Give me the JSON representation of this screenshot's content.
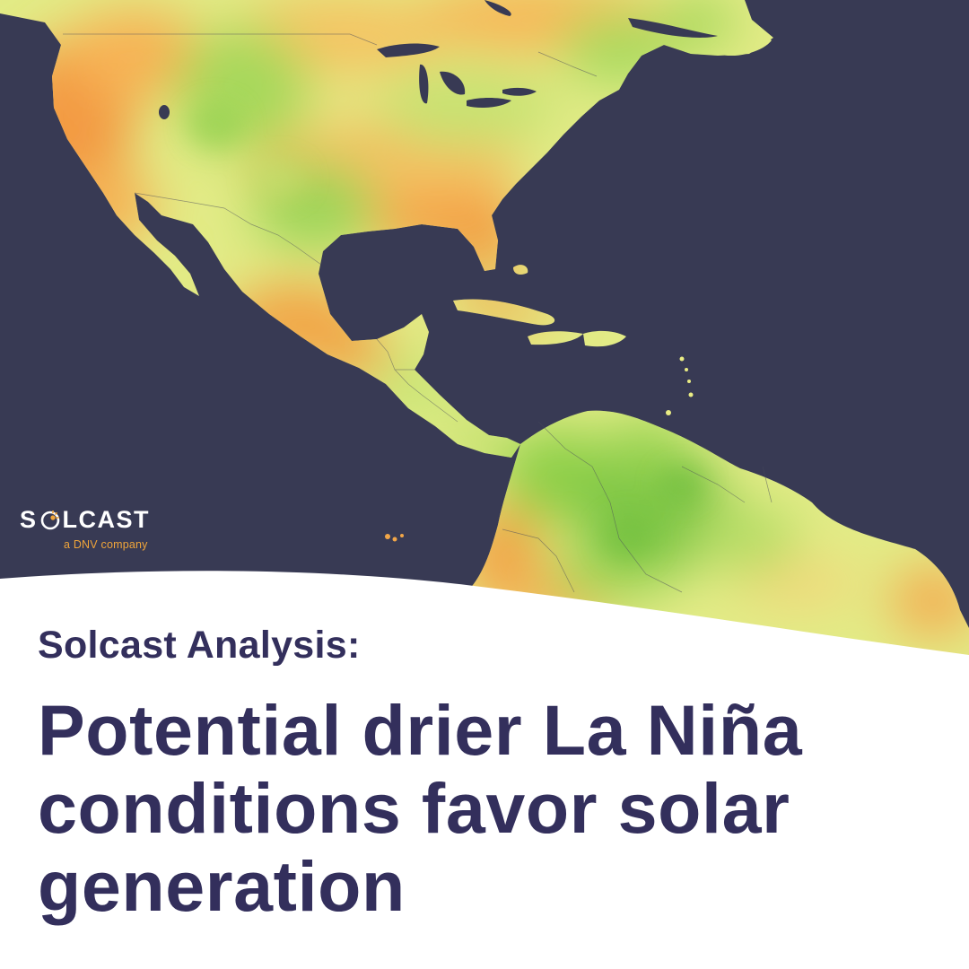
{
  "brand": {
    "wordmark_left": "S",
    "wordmark_right": "LCAST",
    "tagline": "a DNV company"
  },
  "headline": {
    "kicker": "Solcast Analysis:",
    "title": "Potential drier La Niña conditions favor solar generation"
  },
  "colors": {
    "ocean": "#383a54",
    "headline_text": "#332f5c",
    "land_green": "#8fd24a",
    "land_yellow": "#e9ed86",
    "land_orange": "#f5a448",
    "brand_orange": "#f0a53a",
    "background": "#ffffff"
  },
  "map": {
    "region": "North, Central and South America",
    "style": "solar irradiance heat map"
  }
}
